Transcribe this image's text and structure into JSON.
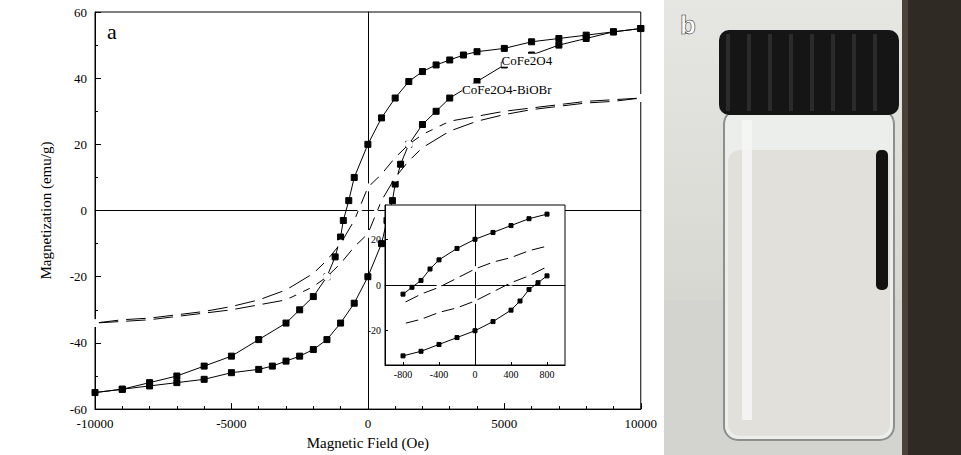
{
  "chart_data": [
    {
      "type": "line",
      "panel_label": "a",
      "xlabel": "Magnetic Field (Oe)",
      "ylabel": "Magnetization (emu/g)",
      "xlim": [
        -10000,
        10000
      ],
      "xticks": [
        -10000,
        -5000,
        0,
        5000,
        10000
      ],
      "ylim": [
        -60,
        60
      ],
      "yticks": [
        -60,
        -40,
        -20,
        0,
        20,
        40,
        60
      ],
      "grid": false,
      "series": [
        {
          "name": "CoFe2O4",
          "color": "#000000",
          "marker": "square",
          "label_at": [
            4900,
            45
          ],
          "x": [
            10000,
            9000,
            8000,
            7000,
            6000,
            5000,
            4000,
            3500,
            3000,
            2500,
            2000,
            1500,
            1000,
            500,
            0,
            -500,
            -700,
            -900,
            -1000,
            -1200,
            -1500,
            -2000,
            -2500,
            -3000,
            -4000,
            -5000,
            -6000,
            -7000,
            -8000,
            -9000,
            -10000,
            -9000,
            -8000,
            -7000,
            -6000,
            -5000,
            -4000,
            -3500,
            -3000,
            -2500,
            -2000,
            -1500,
            -1000,
            -500,
            0,
            500,
            700,
            900,
            1000,
            1200,
            1500,
            2000,
            2500,
            3000,
            4000,
            5000,
            6000,
            7000,
            8000,
            9000,
            10000
          ],
          "values": [
            55,
            54,
            53,
            52,
            51,
            49,
            48,
            47,
            45.5,
            44,
            42,
            39,
            34,
            28,
            20,
            10,
            3,
            -3,
            -8,
            -14,
            -20,
            -26,
            -30,
            -34,
            -39,
            -44,
            -47,
            -50,
            -52,
            -54,
            -55,
            -54,
            -53,
            -52,
            -51,
            -49,
            -48,
            -47,
            -45.5,
            -44,
            -42,
            -39,
            -34,
            -28,
            -20,
            -10,
            -3,
            3,
            8,
            14,
            20,
            26,
            30,
            34,
            39,
            44,
            47,
            50,
            52,
            54,
            55
          ]
        },
        {
          "name": "CoFe2O4-BiOBr",
          "color": "#000000",
          "marker": "open circle",
          "label_at": [
            3450,
            36
          ],
          "x": [
            10000,
            9000,
            8000,
            7000,
            6000,
            5000,
            4000,
            3000,
            2500,
            2000,
            1500,
            1000,
            500,
            0,
            -300,
            -500,
            -1000,
            -1500,
            -2000,
            -3000,
            -4000,
            -5000,
            -6000,
            -7000,
            -8000,
            -9000,
            -10000,
            -9000,
            -8000,
            -7000,
            -6000,
            -5000,
            -4000,
            -3000,
            -2500,
            -2000,
            -1500,
            -1000,
            -500,
            0,
            300,
            500,
            1000,
            1500,
            2000,
            3000,
            4000,
            5000,
            6000,
            7000,
            8000,
            9000,
            10000
          ],
          "values": [
            34,
            33.5,
            33,
            32,
            31,
            30,
            28.5,
            27,
            25,
            23,
            20,
            16,
            11,
            7,
            1,
            -3,
            -10,
            -15,
            -19,
            -24,
            -27,
            -29,
            -30.5,
            -31.5,
            -32.5,
            -33,
            -34,
            -33.5,
            -33,
            -32,
            -31,
            -30,
            -28.5,
            -27,
            -25,
            -23,
            -20,
            -16,
            -11,
            -7,
            -1,
            3,
            10,
            15,
            19,
            24,
            27,
            29,
            30.5,
            31.5,
            32.5,
            33,
            34
          ]
        }
      ]
    },
    {
      "type": "line",
      "xlim": [
        -1000,
        1000
      ],
      "xticks": [
        -800,
        -400,
        0,
        400,
        800
      ],
      "ylim": [
        -35,
        35
      ],
      "yticks": [
        -20,
        0,
        20
      ],
      "grid": false,
      "series": [
        {
          "color": "#000000",
          "marker": "square",
          "x": [
            800,
            600,
            400,
            200,
            0,
            -200,
            -400,
            -500,
            -600,
            -700,
            -800
          ],
          "values": [
            31,
            29,
            26,
            23,
            20,
            16,
            11,
            7,
            2,
            -1,
            -4
          ]
        },
        {
          "color": "#000000",
          "marker": "square",
          "x": [
            -800,
            -600,
            -400,
            -200,
            0,
            200,
            400,
            500,
            600,
            700,
            800
          ],
          "values": [
            -31,
            -29,
            -26,
            -23,
            -20,
            -16,
            -11,
            -7,
            -2,
            1,
            4
          ]
        },
        {
          "color": "#000000",
          "marker": "open circle",
          "x": [
            800,
            600,
            400,
            200,
            0,
            -200,
            -400,
            -600,
            -800
          ],
          "values": [
            17,
            15,
            12,
            10,
            7,
            3,
            -1,
            -4,
            -8
          ]
        },
        {
          "color": "#000000",
          "marker": "open circle",
          "x": [
            -800,
            -600,
            -400,
            -200,
            0,
            200,
            400,
            600,
            800
          ],
          "values": [
            -17,
            -15,
            -12,
            -10,
            -7,
            -3,
            1,
            4,
            8
          ]
        }
      ]
    },
    {
      "type": "image",
      "panel_label": "b"
    }
  ]
}
